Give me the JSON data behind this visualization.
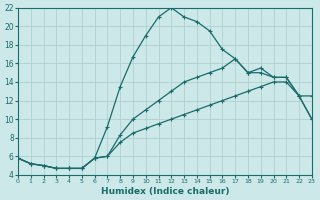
{
  "xlabel": "Humidex (Indice chaleur)",
  "ylabel": "",
  "bg_color": "#cce8e8",
  "grid_color": "#aacccc",
  "line_color": "#1a6b6b",
  "xlim": [
    0,
    23
  ],
  "ylim": [
    4,
    22
  ],
  "xticks": [
    0,
    1,
    2,
    3,
    4,
    5,
    6,
    7,
    8,
    9,
    10,
    11,
    12,
    13,
    14,
    15,
    16,
    17,
    18,
    19,
    20,
    21,
    22,
    23
  ],
  "yticks": [
    4,
    6,
    8,
    10,
    12,
    14,
    16,
    18,
    20,
    22
  ],
  "curve1_x": [
    0,
    1,
    2,
    3,
    4,
    5,
    6,
    7,
    8,
    9,
    10,
    11,
    12,
    13,
    14,
    15,
    16,
    17,
    18,
    19,
    20,
    21,
    22,
    23
  ],
  "curve1_y": [
    5.8,
    5.2,
    5.0,
    4.7,
    4.7,
    4.7,
    5.8,
    9.2,
    13.5,
    16.7,
    19.0,
    21.0,
    22.0,
    21.0,
    20.5,
    19.5,
    17.5,
    16.5,
    15.0,
    15.5,
    14.5,
    14.5,
    12.5,
    12.5
  ],
  "curve2_x": [
    0,
    1,
    2,
    3,
    4,
    5,
    6,
    7,
    8,
    9,
    10,
    11,
    12,
    13,
    14,
    15,
    16,
    17,
    18,
    19,
    20,
    21,
    22,
    23
  ],
  "curve2_y": [
    5.8,
    5.2,
    5.0,
    4.7,
    4.7,
    4.7,
    5.8,
    6.0,
    8.3,
    10.0,
    11.0,
    12.0,
    13.0,
    14.0,
    14.5,
    15.0,
    15.5,
    16.5,
    15.0,
    15.0,
    14.5,
    14.5,
    12.5,
    10.0
  ],
  "curve3_x": [
    0,
    1,
    2,
    3,
    4,
    5,
    6,
    7,
    8,
    9,
    10,
    11,
    12,
    13,
    14,
    15,
    16,
    17,
    18,
    19,
    20,
    21,
    22,
    23
  ],
  "curve3_y": [
    5.8,
    5.2,
    5.0,
    4.7,
    4.7,
    4.7,
    5.8,
    6.0,
    7.5,
    8.5,
    9.0,
    9.5,
    10.0,
    10.5,
    11.0,
    11.5,
    12.0,
    12.5,
    13.0,
    13.5,
    14.0,
    14.0,
    12.5,
    10.0
  ]
}
